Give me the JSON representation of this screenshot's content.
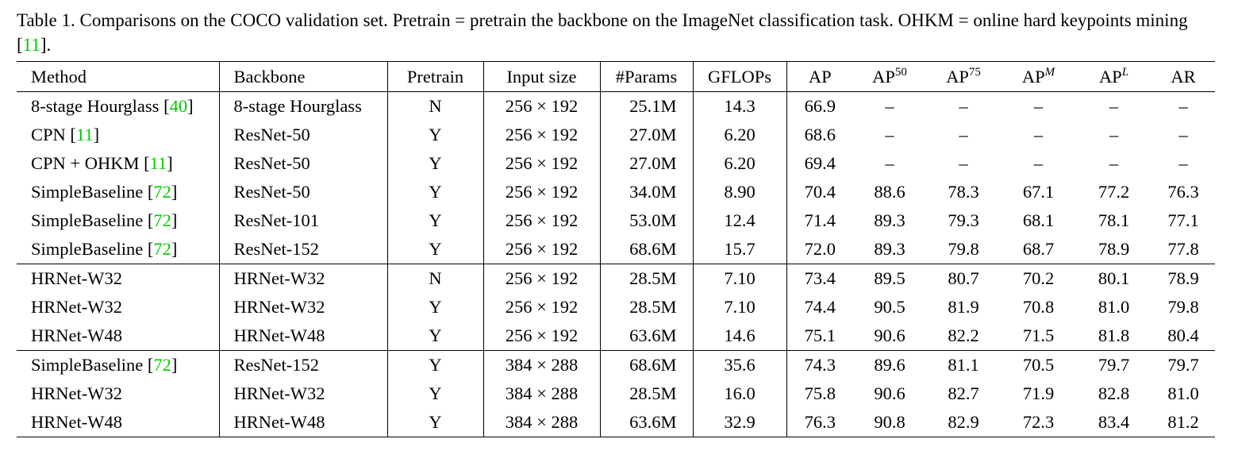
{
  "caption": {
    "text": "Table 1. Comparisons on the COCO validation set. Pretrain = pretrain the backbone on the ImageNet classification task. OHKM = online hard keypoints mining [",
    "cite": "11",
    "end": "]."
  },
  "header": {
    "method": "Method",
    "backbone": "Backbone",
    "pretrain": "Pretrain",
    "input_size": "Input size",
    "params": "#Params",
    "gflops": "GFLOPs",
    "ap": "AP",
    "ap50_base": "AP",
    "ap50_sup": "50",
    "ap75_base": "AP",
    "ap75_sup": "75",
    "apm_base": "AP",
    "apm_sup": "M",
    "apl_base": "AP",
    "apl_sup": "L",
    "ar": "AR"
  },
  "groups": [
    [
      {
        "method": "8-stage Hourglass",
        "cite": "40",
        "backbone": "8-stage Hourglass",
        "pretrain": "N",
        "input": "256 × 192",
        "params": "25.1M",
        "gflops": "14.3",
        "ap": "66.9",
        "ap50": "–",
        "ap75": "–",
        "apm": "–",
        "apl": "–",
        "ar": "–"
      },
      {
        "method": "CPN",
        "cite": "11",
        "backbone": "ResNet-50",
        "pretrain": "Y",
        "input": "256 × 192",
        "params": "27.0M",
        "gflops": "6.20",
        "ap": "68.6",
        "ap50": "–",
        "ap75": "–",
        "apm": "–",
        "apl": "–",
        "ar": "–"
      },
      {
        "method": "CPN + OHKM",
        "cite": "11",
        "backbone": "ResNet-50",
        "pretrain": "Y",
        "input": "256 × 192",
        "params": "27.0M",
        "gflops": "6.20",
        "ap": "69.4",
        "ap50": "–",
        "ap75": "–",
        "apm": "–",
        "apl": "–",
        "ar": "–"
      },
      {
        "method": "SimpleBaseline",
        "cite": "72",
        "backbone": "ResNet-50",
        "pretrain": "Y",
        "input": "256 × 192",
        "params": "34.0M",
        "gflops": "8.90",
        "ap": "70.4",
        "ap50": "88.6",
        "ap75": "78.3",
        "apm": "67.1",
        "apl": "77.2",
        "ar": "76.3"
      },
      {
        "method": "SimpleBaseline",
        "cite": "72",
        "backbone": "ResNet-101",
        "pretrain": "Y",
        "input": "256 × 192",
        "params": "53.0M",
        "gflops": "12.4",
        "ap": "71.4",
        "ap50": "89.3",
        "ap75": "79.3",
        "apm": "68.1",
        "apl": "78.1",
        "ar": "77.1"
      },
      {
        "method": "SimpleBaseline",
        "cite": "72",
        "backbone": "ResNet-152",
        "pretrain": "Y",
        "input": "256 × 192",
        "params": "68.6M",
        "gflops": "15.7",
        "ap": "72.0",
        "ap50": "89.3",
        "ap75": "79.8",
        "apm": "68.7",
        "apl": "78.9",
        "ar": "77.8"
      }
    ],
    [
      {
        "method": "HRNet-W32",
        "cite": "",
        "backbone": "HRNet-W32",
        "pretrain": "N",
        "input": "256 × 192",
        "params": "28.5M",
        "gflops": "7.10",
        "ap": "73.4",
        "ap50": "89.5",
        "ap75": "80.7",
        "apm": "70.2",
        "apl": "80.1",
        "ar": "78.9"
      },
      {
        "method": "HRNet-W32",
        "cite": "",
        "backbone": "HRNet-W32",
        "pretrain": "Y",
        "input": "256 × 192",
        "params": "28.5M",
        "gflops": "7.10",
        "ap": "74.4",
        "ap50": "90.5",
        "ap75": "81.9",
        "apm": "70.8",
        "apl": "81.0",
        "ar": "79.8"
      },
      {
        "method": "HRNet-W48",
        "cite": "",
        "backbone": "HRNet-W48",
        "pretrain": "Y",
        "input": "256 × 192",
        "params": "63.6M",
        "gflops": "14.6",
        "ap": "75.1",
        "ap50": "90.6",
        "ap75": "82.2",
        "apm": "71.5",
        "apl": "81.8",
        "ar": "80.4"
      }
    ],
    [
      {
        "method": "SimpleBaseline",
        "cite": "72",
        "backbone": "ResNet-152",
        "pretrain": "Y",
        "input": "384 × 288",
        "params": "68.6M",
        "gflops": "35.6",
        "ap": "74.3",
        "ap50": "89.6",
        "ap75": "81.1",
        "apm": "70.5",
        "apl": "79.7",
        "ar": "79.7"
      },
      {
        "method": "HRNet-W32",
        "cite": "",
        "backbone": "HRNet-W32",
        "pretrain": "Y",
        "input": "384 × 288",
        "params": "28.5M",
        "gflops": "16.0",
        "ap": "75.8",
        "ap50": "90.6",
        "ap75": "82.7",
        "apm": "71.9",
        "apl": "82.8",
        "ar": "81.0"
      },
      {
        "method": "HRNet-W48",
        "cite": "",
        "backbone": "HRNet-W48",
        "pretrain": "Y",
        "input": "384 × 288",
        "params": "63.6M",
        "gflops": "32.9",
        "ap": "76.3",
        "ap50": "90.8",
        "ap75": "82.9",
        "apm": "72.3",
        "apl": "83.4",
        "ar": "81.2",
        "bold": true
      }
    ]
  ]
}
